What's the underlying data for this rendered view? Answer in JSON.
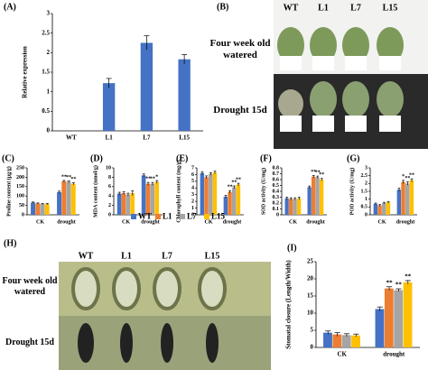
{
  "chart_data": [
    {
      "type": "bar",
      "title": "(A)",
      "ylabel": "Relative expression",
      "categories": [
        "WT",
        "L1",
        "L7",
        "L15"
      ],
      "values": [
        0,
        1.22,
        2.25,
        1.83
      ],
      "errors": [
        null,
        0.12,
        0.18,
        0.12
      ],
      "color": "#4472c4",
      "ylim": [
        0,
        3
      ],
      "yticks": [
        0,
        0.5,
        1,
        1.5,
        2,
        2.5,
        3
      ]
    },
    {
      "type": "grouped_bar",
      "title": "(C)",
      "ylabel": "Proline content (μg/g)",
      "categories": [
        "CK",
        "drought"
      ],
      "series": [
        {
          "values": [
            65,
            120
          ],
          "errors": [
            3,
            6
          ],
          "annotations": [
            null,
            null
          ]
        },
        {
          "values": [
            60,
            178
          ],
          "errors": [
            3,
            5
          ],
          "annotations": [
            null,
            "**"
          ]
        },
        {
          "values": [
            57,
            175
          ],
          "errors": [
            3,
            5
          ],
          "annotations": [
            null,
            "**"
          ]
        },
        {
          "values": [
            57,
            165
          ],
          "errors": [
            3,
            5
          ],
          "annotations": [
            null,
            "**"
          ]
        }
      ],
      "ylim": [
        0,
        250
      ],
      "yticks": [
        0,
        50,
        100,
        150,
        200,
        250
      ]
    },
    {
      "type": "grouped_bar",
      "title": "(D)",
      "ylabel": "MDA content (nmol/g)",
      "categories": [
        "CK",
        "drought"
      ],
      "series": [
        {
          "values": [
            4.5,
            8.4
          ],
          "errors": [
            0.3,
            0.3
          ],
          "annotations": [
            null,
            null
          ]
        },
        {
          "values": [
            4.6,
            6.6
          ],
          "errors": [
            0.3,
            0.3
          ],
          "annotations": [
            null,
            "**"
          ]
        },
        {
          "values": [
            4.3,
            6.6
          ],
          "errors": [
            0.3,
            0.3
          ],
          "annotations": [
            null,
            "**"
          ]
        },
        {
          "values": [
            4.6,
            7.0
          ],
          "errors": [
            0.5,
            0.3
          ],
          "annotations": [
            null,
            "*"
          ]
        }
      ],
      "ylim": [
        0,
        10
      ],
      "yticks": [
        0,
        2,
        4,
        6,
        8,
        10
      ]
    },
    {
      "type": "grouped_bar",
      "title": "(E)",
      "ylabel": "Chlorophyll content (mg/g)",
      "categories": [
        "CK",
        "drought"
      ],
      "series": [
        {
          "values": [
            6.2,
            2.7
          ],
          "errors": [
            0.2,
            0.2
          ],
          "annotations": [
            null,
            null
          ]
        },
        {
          "values": [
            5.6,
            3.4
          ],
          "errors": [
            0.2,
            0.2
          ],
          "annotations": [
            null,
            "**"
          ]
        },
        {
          "values": [
            6.1,
            4.1
          ],
          "errors": [
            0.2,
            0.2
          ],
          "annotations": [
            null,
            "**"
          ]
        },
        {
          "values": [
            6.3,
            4.5
          ],
          "errors": [
            0.2,
            0.2
          ],
          "annotations": [
            null,
            "**"
          ]
        }
      ],
      "ylim": [
        0,
        7
      ],
      "yticks": [
        0,
        1,
        2,
        3,
        4,
        5,
        6,
        7
      ]
    },
    {
      "type": "grouped_bar",
      "title": "(F)",
      "ylabel": "SOD activity (U/mg)",
      "categories": [
        "CK",
        "drought"
      ],
      "series": [
        {
          "values": [
            0.28,
            0.47
          ],
          "errors": [
            0.02,
            0.02
          ],
          "annotations": [
            null,
            null
          ]
        },
        {
          "values": [
            0.27,
            0.65
          ],
          "errors": [
            0.02,
            0.02
          ],
          "annotations": [
            null,
            "**"
          ]
        },
        {
          "values": [
            0.27,
            0.64
          ],
          "errors": [
            0.02,
            0.02
          ],
          "annotations": [
            null,
            "**"
          ]
        },
        {
          "values": [
            0.28,
            0.6
          ],
          "errors": [
            0.02,
            0.02
          ],
          "annotations": [
            null,
            "**"
          ]
        }
      ],
      "ylim": [
        0,
        0.8
      ],
      "yticks": [
        0,
        0.1,
        0.2,
        0.3,
        0.4,
        0.5,
        0.6,
        0.7,
        0.8
      ]
    },
    {
      "type": "grouped_bar",
      "title": "(G)",
      "ylabel": "POD activity (U/mg)",
      "categories": [
        "CK",
        "drought"
      ],
      "series": [
        {
          "values": [
            0.7,
            1.6
          ],
          "errors": [
            0.05,
            0.1
          ],
          "annotations": [
            null,
            null
          ]
        },
        {
          "values": [
            0.6,
            2.1
          ],
          "errors": [
            0.05,
            0.1
          ],
          "annotations": [
            null,
            "*"
          ]
        },
        {
          "values": [
            0.75,
            2.0
          ],
          "errors": [
            0.05,
            0.1
          ],
          "annotations": [
            null,
            "**"
          ]
        },
        {
          "values": [
            0.8,
            2.2
          ],
          "errors": [
            0.05,
            0.1
          ],
          "annotations": [
            null,
            "**"
          ]
        }
      ],
      "ylim": [
        0,
        3
      ],
      "yticks": [
        0,
        0.5,
        1,
        1.5,
        2,
        2.5,
        3
      ]
    },
    {
      "type": "grouped_bar",
      "title": "(I)",
      "ylabel": "Stomatal closure (Length/Width)",
      "categories": [
        "CK",
        "drought"
      ],
      "series": [
        {
          "values": [
            4.3,
            11.2
          ],
          "errors": [
            0.5,
            0.6
          ],
          "annotations": [
            null,
            null
          ]
        },
        {
          "values": [
            3.8,
            17.2
          ],
          "errors": [
            0.5,
            0.5
          ],
          "annotations": [
            null,
            "**"
          ]
        },
        {
          "values": [
            3.6,
            16.7
          ],
          "errors": [
            0.4,
            0.4
          ],
          "annotations": [
            null,
            "**"
          ]
        },
        {
          "values": [
            3.5,
            19.0
          ],
          "errors": [
            0.4,
            0.5
          ],
          "annotations": [
            null,
            "**"
          ]
        }
      ],
      "ylim": [
        0,
        25
      ],
      "yticks": [
        0,
        5,
        10,
        15,
        20,
        25
      ]
    }
  ],
  "legend": {
    "items": [
      {
        "name": "WT",
        "color": "#4472c4"
      },
      {
        "name": "L1",
        "color": "#ed7d31"
      },
      {
        "name": "L7",
        "color": "#a5a5a5"
      },
      {
        "name": "L15",
        "color": "#ffc000"
      }
    ]
  },
  "photo_b": {
    "label": "(B)",
    "columns": [
      "WT",
      "L1",
      "L7",
      "L15"
    ],
    "rows": [
      "Four week old watered",
      "Drought 15d"
    ]
  },
  "photo_h": {
    "label": "(H)",
    "columns": [
      "WT",
      "L1",
      "L7",
      "L15"
    ],
    "rows": [
      "Four week old watered",
      "Drought 15d"
    ]
  }
}
